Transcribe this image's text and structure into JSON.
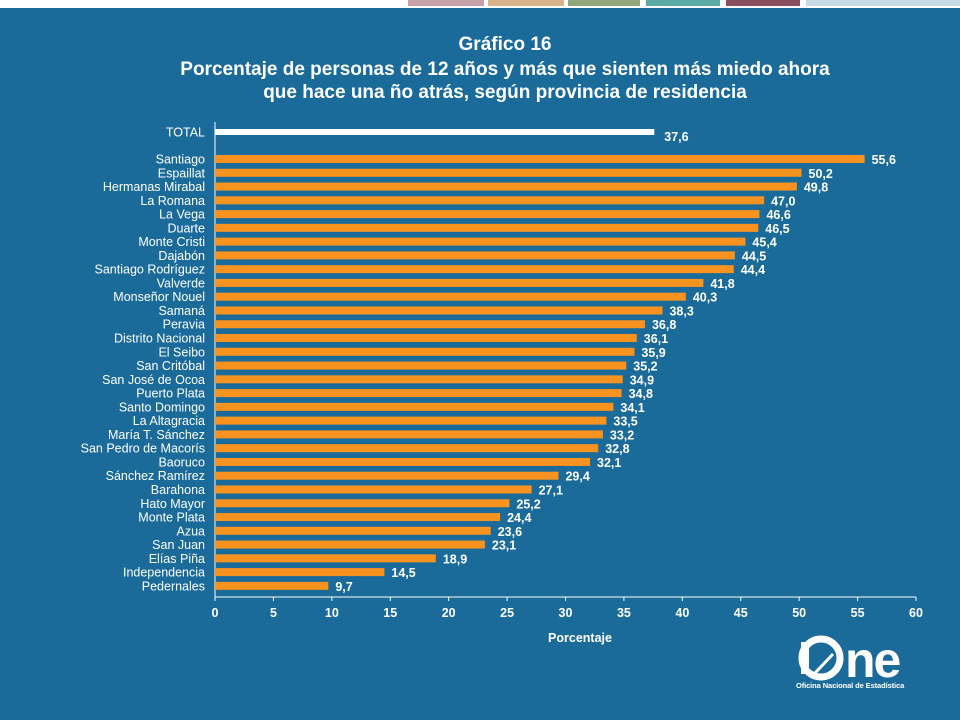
{
  "header": {
    "title_line1": "Gráfico 16",
    "title_line2": "Porcentaje de personas de 12 años y más que sienten más miedo ahora",
    "title_line3": "que hace una ño atrás, según provincia de residencia"
  },
  "logo": {
    "wordmark": "ne",
    "subtitle": "Oficina Nacional de Estadística"
  },
  "colors": {
    "background": "#1a6b9a",
    "bar": "#f7931e",
    "total_bar": "#ffffff",
    "text": "#ffffff"
  },
  "chart_data": {
    "type": "bar",
    "orientation": "horizontal",
    "categories": [
      "TOTAL",
      "Santiago",
      "Espaillat",
      "Hermanas Mirabal",
      "La Romana",
      "La Vega",
      "Duarte",
      "Monte Cristi",
      "Dajabón",
      "Santiago Rodríguez",
      "Valverde",
      "Monseñor Nouel",
      "Samaná",
      "Peravia",
      "Distrito Nacional",
      "El Seibo",
      "San Critóbal",
      "San José de Ocoa",
      "Puerto Plata",
      "Santo Domingo",
      "La Altagracia",
      "María T. Sánchez",
      "San Pedro de Macorís",
      "Baoruco",
      "Sánchez Ramírez",
      "Barahona",
      "Hato Mayor",
      "Monte Plata",
      "Azua",
      "San Juan",
      "Elías Piña",
      "Independencia",
      "Pedernales"
    ],
    "values": [
      37.6,
      55.6,
      50.2,
      49.8,
      47.0,
      46.6,
      46.5,
      45.4,
      44.5,
      44.4,
      41.8,
      40.3,
      38.3,
      36.8,
      36.1,
      35.9,
      35.2,
      34.9,
      34.8,
      34.1,
      33.5,
      33.2,
      32.8,
      32.1,
      29.4,
      27.1,
      25.2,
      24.4,
      23.6,
      23.1,
      18.9,
      14.5,
      9.7
    ],
    "value_labels": [
      "37,6",
      "55,6",
      "50,2",
      "49,8",
      "47,0",
      "46,6",
      "46,5",
      "45,4",
      "44,5",
      "44,4",
      "41,8",
      "40,3",
      "38,3",
      "36,8",
      "36,1",
      "35,9",
      "35,2",
      "34,9",
      "34,8",
      "34,1",
      "33,5",
      "33,2",
      "32,8",
      "32,1",
      "29,4",
      "27,1",
      "25,2",
      "24,4",
      "23,6",
      "23,1",
      "18,9",
      "14,5",
      "9,7"
    ],
    "xlim": [
      0,
      60
    ],
    "xticks": [
      "0",
      "5",
      "10",
      "15",
      "20",
      "25",
      "30",
      "35",
      "40",
      "45",
      "50",
      "55",
      "60"
    ],
    "xlabel": "Porcentaje",
    "ylabel": "",
    "grid": false,
    "legend": "none"
  }
}
